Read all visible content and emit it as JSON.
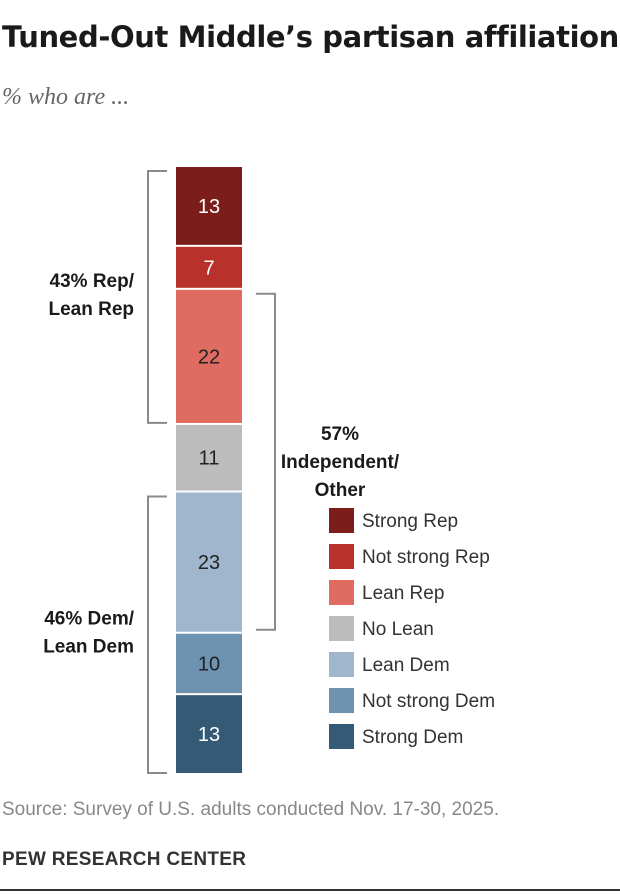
{
  "title": "Tuned-Out Middle’s partisan affiliation",
  "subtitle": "% who are ...",
  "chart_data": {
    "type": "bar",
    "stacked": true,
    "orientation": "vertical",
    "categories": [
      "Strong Rep",
      "Not strong Rep",
      "Lean Rep",
      "No Lean",
      "Lean Dem",
      "Not strong Dem",
      "Strong Dem"
    ],
    "values": [
      13,
      7,
      22,
      11,
      23,
      10,
      13
    ],
    "colors": [
      "#7b1e1b",
      "#b8312b",
      "#df6b61",
      "#bcbcbc",
      "#a0b6cc",
      "#6d93b0",
      "#345a76"
    ],
    "label_colors": [
      "#ffffff",
      "#ffffff",
      "#222222",
      "#222222",
      "#222222",
      "#222222",
      "#ffffff"
    ],
    "ylim": [
      0,
      99
    ],
    "legend_position": "right",
    "brackets": [
      {
        "line1": "43% Rep/",
        "line2": "Lean Rep",
        "from": 0,
        "to": 2,
        "side": "left"
      },
      {
        "line1": "46% Dem/",
        "line2": "Lean Dem",
        "from": 4,
        "to": 6,
        "side": "left"
      },
      {
        "line1": "57%",
        "line2": "Independent/",
        "line3": "Other",
        "from": 2,
        "to": 4,
        "side": "right"
      }
    ]
  },
  "source": "Source: Survey of U.S. adults conducted Nov. 17-30, 2025.",
  "org": "PEW RESEARCH CENTER"
}
